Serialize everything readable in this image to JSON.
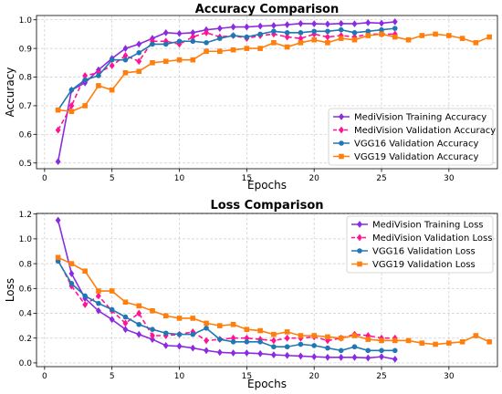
{
  "chart_data": [
    {
      "type": "line",
      "title": "Accuracy Comparison",
      "xlabel": "Epochs",
      "ylabel": "Accuracy",
      "xlim": [
        -0.6,
        33.6
      ],
      "ylim": [
        0.48,
        1.015
      ],
      "xticks": [
        0,
        5,
        10,
        15,
        20,
        25,
        30
      ],
      "yticks": [
        0.5,
        0.6,
        0.7,
        0.8,
        0.9,
        1.0
      ],
      "xtick_labels": [
        "0",
        "5",
        "10",
        "15",
        "20",
        "25",
        "30"
      ],
      "ytick_labels": [
        "0.5",
        "0.6",
        "0.7",
        "0.8",
        "0.9",
        "1.0"
      ],
      "grid": true,
      "legend": "lower-right",
      "series": [
        {
          "name": "MediVision Training Accuracy",
          "color": "#8a2be2",
          "marker": "diamond",
          "dash": "solid",
          "x": [
            1,
            2,
            3,
            4,
            5,
            6,
            7,
            8,
            9,
            10,
            11,
            12,
            13,
            14,
            15,
            16,
            17,
            18,
            19,
            20,
            21,
            22,
            23,
            24,
            25,
            26
          ],
          "y": [
            0.505,
            0.755,
            0.78,
            0.825,
            0.865,
            0.9,
            0.915,
            0.935,
            0.955,
            0.952,
            0.955,
            0.965,
            0.97,
            0.975,
            0.975,
            0.978,
            0.98,
            0.983,
            0.987,
            0.986,
            0.985,
            0.987,
            0.986,
            0.99,
            0.988,
            0.993
          ]
        },
        {
          "name": "MediVision Validation Accuracy",
          "color": "#ff1493",
          "marker": "diamond",
          "dash": "dashed",
          "x": [
            1,
            2,
            3,
            4,
            5,
            6,
            7,
            8,
            9,
            10,
            11,
            12,
            13,
            14,
            15,
            16,
            17,
            18,
            19,
            20,
            21,
            22,
            23,
            24,
            25,
            26
          ],
          "y": [
            0.615,
            0.7,
            0.805,
            0.815,
            0.84,
            0.875,
            0.855,
            0.925,
            0.925,
            0.915,
            0.94,
            0.955,
            0.94,
            0.945,
            0.935,
            0.945,
            0.95,
            0.94,
            0.935,
            0.95,
            0.94,
            0.945,
            0.94,
            0.95,
            0.95,
            0.95
          ]
        },
        {
          "name": "VGG16 Validation Accuracy",
          "color": "#1f77b4",
          "marker": "circle",
          "dash": "solid",
          "x": [
            1,
            2,
            3,
            4,
            5,
            6,
            7,
            8,
            9,
            10,
            11,
            12,
            13,
            14,
            15,
            16,
            17,
            18,
            19,
            20,
            21,
            22,
            23,
            24,
            25,
            26
          ],
          "y": [
            0.685,
            0.755,
            0.79,
            0.805,
            0.86,
            0.86,
            0.885,
            0.915,
            0.915,
            0.925,
            0.925,
            0.92,
            0.935,
            0.945,
            0.94,
            0.95,
            0.96,
            0.955,
            0.955,
            0.96,
            0.96,
            0.965,
            0.955,
            0.96,
            0.965,
            0.97
          ]
        },
        {
          "name": "VGG19 Validation Accuracy",
          "color": "#ff7f0e",
          "marker": "square",
          "dash": "solid",
          "x": [
            1,
            2,
            3,
            4,
            5,
            6,
            7,
            8,
            9,
            10,
            11,
            12,
            13,
            14,
            15,
            16,
            17,
            18,
            19,
            20,
            21,
            22,
            23,
            24,
            25,
            26,
            27,
            28,
            29,
            30,
            31,
            32,
            33
          ],
          "y": [
            0.685,
            0.68,
            0.7,
            0.77,
            0.755,
            0.815,
            0.82,
            0.85,
            0.855,
            0.86,
            0.86,
            0.89,
            0.89,
            0.895,
            0.9,
            0.9,
            0.92,
            0.905,
            0.92,
            0.93,
            0.92,
            0.935,
            0.93,
            0.945,
            0.95,
            0.94,
            0.93,
            0.945,
            0.95,
            0.945,
            0.935,
            0.92,
            0.94
          ]
        }
      ]
    },
    {
      "type": "line",
      "title": "Loss Comparison",
      "xlabel": "Epochs",
      "ylabel": "Loss",
      "xlim": [
        -0.6,
        33.6
      ],
      "ylim": [
        -0.03,
        1.205
      ],
      "xticks": [
        0,
        5,
        10,
        15,
        20,
        25,
        30
      ],
      "yticks": [
        0.0,
        0.2,
        0.4,
        0.6,
        0.8,
        1.0,
        1.2
      ],
      "xtick_labels": [
        "0",
        "5",
        "10",
        "15",
        "20",
        "25",
        "30"
      ],
      "ytick_labels": [
        "0.0",
        "0.2",
        "0.4",
        "0.6",
        "0.8",
        "1.0",
        "1.2"
      ],
      "grid": true,
      "legend": "upper-right",
      "series": [
        {
          "name": "MediVision Training Loss",
          "color": "#8a2be2",
          "marker": "diamond",
          "dash": "solid",
          "x": [
            1,
            2,
            3,
            4,
            5,
            6,
            7,
            8,
            9,
            10,
            11,
            12,
            13,
            14,
            15,
            16,
            17,
            18,
            19,
            20,
            21,
            22,
            23,
            24,
            25,
            26
          ],
          "y": [
            1.15,
            0.72,
            0.52,
            0.42,
            0.35,
            0.27,
            0.23,
            0.19,
            0.14,
            0.135,
            0.12,
            0.1,
            0.085,
            0.08,
            0.08,
            0.075,
            0.065,
            0.06,
            0.055,
            0.05,
            0.045,
            0.045,
            0.045,
            0.04,
            0.05,
            0.03
          ]
        },
        {
          "name": "MediVision Validation Loss",
          "color": "#ff1493",
          "marker": "diamond",
          "dash": "dashed",
          "x": [
            1,
            2,
            3,
            4,
            5,
            6,
            7,
            8,
            9,
            10,
            11,
            12,
            13,
            14,
            15,
            16,
            17,
            18,
            19,
            20,
            21,
            22,
            23,
            24,
            25,
            26
          ],
          "y": [
            0.83,
            0.62,
            0.47,
            0.54,
            0.42,
            0.32,
            0.4,
            0.22,
            0.22,
            0.23,
            0.25,
            0.18,
            0.19,
            0.2,
            0.2,
            0.19,
            0.18,
            0.2,
            0.2,
            0.21,
            0.18,
            0.2,
            0.23,
            0.22,
            0.2,
            0.2
          ]
        },
        {
          "name": "VGG16 Validation Loss",
          "color": "#1f77b4",
          "marker": "circle",
          "dash": "solid",
          "x": [
            1,
            2,
            3,
            4,
            5,
            6,
            7,
            8,
            9,
            10,
            11,
            12,
            13,
            14,
            15,
            16,
            17,
            18,
            19,
            20,
            21,
            22,
            23,
            24,
            25,
            26
          ],
          "y": [
            0.82,
            0.64,
            0.54,
            0.48,
            0.43,
            0.37,
            0.31,
            0.27,
            0.24,
            0.23,
            0.23,
            0.28,
            0.19,
            0.17,
            0.17,
            0.17,
            0.13,
            0.13,
            0.15,
            0.14,
            0.12,
            0.1,
            0.13,
            0.1,
            0.1,
            0.1
          ]
        },
        {
          "name": "VGG19 Validation Loss",
          "color": "#ff7f0e",
          "marker": "square",
          "dash": "solid",
          "x": [
            1,
            2,
            3,
            4,
            5,
            6,
            7,
            8,
            9,
            10,
            11,
            12,
            13,
            14,
            15,
            16,
            17,
            18,
            19,
            20,
            21,
            22,
            23,
            24,
            25,
            26,
            27,
            28,
            29,
            30,
            31,
            32,
            33
          ],
          "y": [
            0.85,
            0.8,
            0.74,
            0.58,
            0.58,
            0.49,
            0.46,
            0.42,
            0.38,
            0.36,
            0.36,
            0.32,
            0.3,
            0.31,
            0.27,
            0.26,
            0.23,
            0.25,
            0.22,
            0.22,
            0.21,
            0.2,
            0.22,
            0.19,
            0.18,
            0.18,
            0.18,
            0.16,
            0.15,
            0.16,
            0.17,
            0.22,
            0.17
          ]
        }
      ]
    }
  ]
}
